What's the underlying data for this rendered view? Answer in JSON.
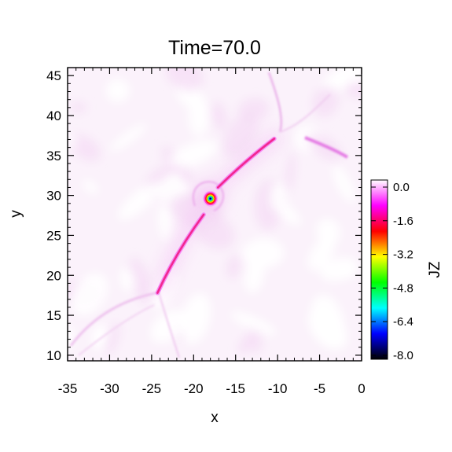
{
  "chart_data": {
    "type": "heatmap",
    "title": "Time=70.0",
    "xlabel": "x",
    "ylabel": "y",
    "xlim": [
      -35,
      0
    ],
    "ylim": [
      9.3,
      46
    ],
    "x_ticks": [
      "-35",
      "-30",
      "-25",
      "-20",
      "-15",
      "-10",
      "-5",
      "0"
    ],
    "y_ticks": [
      "10",
      "15",
      "20",
      "25",
      "30",
      "35",
      "40",
      "45"
    ],
    "colorbar": {
      "label": "JZ",
      "range": [
        -8.0,
        0.0
      ],
      "ticks": [
        "0.0",
        "-1.6",
        "-3.2",
        "-4.8",
        "-6.4",
        "-8.0"
      ],
      "colors": [
        "#ffffff",
        "#ff00ff",
        "#ff0000",
        "#ffff00",
        "#00ff00",
        "#00ffff",
        "#0000ff",
        "#000000"
      ]
    },
    "features": {
      "current_sheet_lower": {
        "from": [
          -24.3,
          17.8
        ],
        "to": [
          -18.8,
          27.6
        ],
        "jz": -1.6
      },
      "current_sheet_upper": {
        "from": [
          -17.1,
          31.0
        ],
        "to": [
          -10.4,
          37.1
        ],
        "jz": -1.6
      },
      "plasmoid_center": {
        "x": -18.0,
        "y": 29.6,
        "jz": -8.0
      },
      "shock_upper_right": {
        "from": [
          -9.0,
          36.6
        ],
        "to": [
          -4.0,
          34.0
        ],
        "jz": -0.6
      }
    },
    "grid": false,
    "legend": "none"
  }
}
